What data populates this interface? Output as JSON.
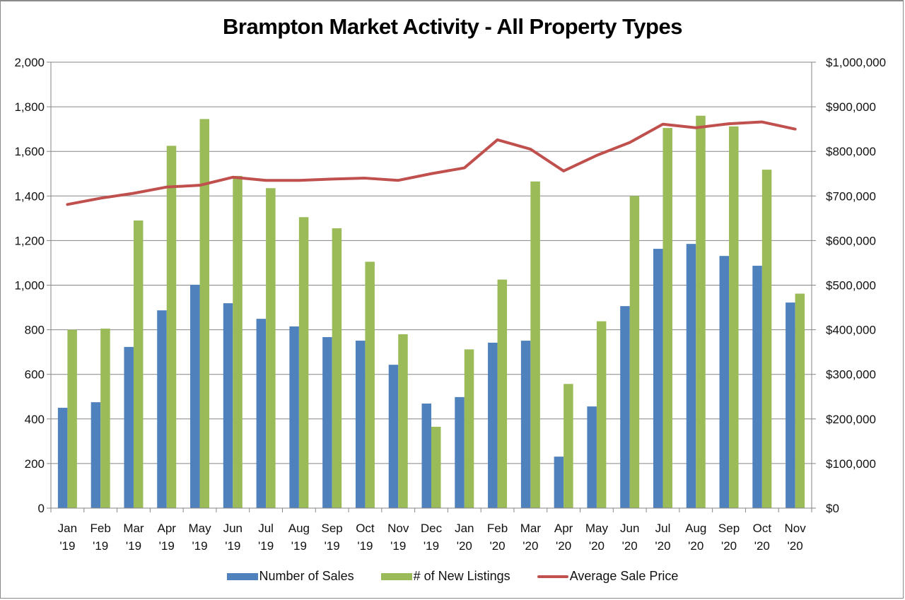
{
  "chart_data": {
    "type": "bar",
    "title": "Brampton Market Activity - All Property Types",
    "xlabel": "",
    "ylabel": "",
    "y2label": "",
    "categories": [
      [
        "Jan",
        "'19"
      ],
      [
        "Feb",
        "'19"
      ],
      [
        "Mar",
        "'19"
      ],
      [
        "Apr",
        "'19"
      ],
      [
        "May",
        "'19"
      ],
      [
        "Jun",
        "'19"
      ],
      [
        "Jul",
        "'19"
      ],
      [
        "Aug",
        "'19"
      ],
      [
        "Sep",
        "'19"
      ],
      [
        "Oct",
        "'19"
      ],
      [
        "Nov",
        "'19"
      ],
      [
        "Dec",
        "'19"
      ],
      [
        "Jan",
        "'20"
      ],
      [
        "Feb",
        "'20"
      ],
      [
        "Mar",
        "'20"
      ],
      [
        "Apr",
        "'20"
      ],
      [
        "May",
        "'20"
      ],
      [
        "Jun",
        "'20"
      ],
      [
        "Jul",
        "'20"
      ],
      [
        "Aug",
        "'20"
      ],
      [
        "Sep",
        "'20"
      ],
      [
        "Oct",
        "'20"
      ],
      [
        "Nov",
        "'20"
      ]
    ],
    "series": [
      {
        "name": "Number of Sales",
        "type": "bar",
        "axis": "left",
        "color": "#4f81bd",
        "values": [
          450,
          475,
          723,
          887,
          1002,
          919,
          849,
          815,
          767,
          751,
          643,
          469,
          498,
          742,
          751,
          231,
          456,
          906,
          1163,
          1185,
          1131,
          1087,
          922
        ]
      },
      {
        "name": "# of New Listings",
        "type": "bar",
        "axis": "left",
        "color": "#9bbb59",
        "values": [
          800,
          805,
          1290,
          1625,
          1745,
          1490,
          1435,
          1305,
          1255,
          1105,
          780,
          365,
          712,
          1025,
          1465,
          557,
          838,
          1400,
          1705,
          1760,
          1712,
          1518,
          962
        ]
      },
      {
        "name": "Average Sale Price",
        "type": "line",
        "axis": "right",
        "color": "#c0504d",
        "values": [
          681000,
          695000,
          706000,
          720000,
          724000,
          742000,
          735000,
          735000,
          738000,
          740000,
          735000,
          750000,
          763000,
          826000,
          805000,
          756000,
          791000,
          820000,
          861000,
          853000,
          862000,
          866000,
          850000
        ]
      }
    ],
    "ylim": [
      0,
      2000
    ],
    "y2lim": [
      0,
      1000000
    ],
    "yticks": [
      "0",
      "200",
      "400",
      "600",
      "800",
      "1,000",
      "1,200",
      "1,400",
      "1,600",
      "1,800",
      "2,000"
    ],
    "y2ticks": [
      "$0",
      "$100,000",
      "$200,000",
      "$300,000",
      "$400,000",
      "$500,000",
      "$600,000",
      "$700,000",
      "$800,000",
      "$900,000",
      "$1,000,000"
    ],
    "grid": true,
    "legend": {
      "placement": "bottom",
      "items": [
        "Number of Sales",
        "# of New Listings",
        "Average Sale Price"
      ]
    }
  }
}
